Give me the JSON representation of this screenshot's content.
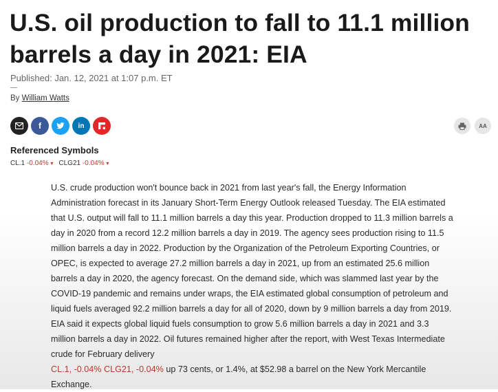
{
  "headline": "U.S. oil production to fall to 11.1 million barrels a day in 2021: EIA",
  "published": "Published: Jan. 12, 2021 at 1:07 p.m. ET",
  "byline": {
    "prefix": "By",
    "author": "William Watts"
  },
  "share_buttons": [
    {
      "icon": "email-icon",
      "color": "#222222",
      "glyph": "✉"
    },
    {
      "icon": "facebook-icon",
      "color": "#3b5998",
      "glyph": "f"
    },
    {
      "icon": "twitter-icon",
      "color": "#1da1f2",
      "glyph": "t"
    },
    {
      "icon": "linkedin-icon",
      "color": "#0077b5",
      "glyph": "in"
    },
    {
      "icon": "flipboard-icon",
      "color": "#e12828",
      "glyph": "f"
    }
  ],
  "tools": {
    "print_icon": "print-icon",
    "text_size_label": "AA"
  },
  "referenced_symbols": {
    "title": "Referenced Symbols",
    "items": [
      {
        "symbol": "CL.1",
        "change": "-0.04%",
        "indicator": "▾"
      },
      {
        "symbol": "CLG21",
        "change": "-0.04%",
        "indicator": "▾"
      }
    ]
  },
  "article": {
    "text_before": "U.S. crude production won't bounce back in 2021 from last year's fall, the Energy Information Administration forecast in its January Short-Term Energy Outlook released Tuesday. The EIA estimated that U.S. output will fall to 11.1 million barrels a day this year. Production dropped to 11.3 million barrels a day in 2020 from a record 12.2 million barrels a day in 2019. The agency sees production rising to 11.5 million barrels a day in 2022. Production by the Organization of the Petroleum Exporting Countries, or OPEC, is expected to average 27.2 million barrels a day in 2021, up from an estimated 25.6 million barrels a day in 2020, the agency forecast. On the demand side, which was slammed last year by the COVID-19 pandemic and remains under wraps, the EIA estimated global consumption of petroleum and liquid fuels averaged 92.2 million barrels a day for all of 2020, down by 9 million barrels a day from 2019. EIA said it expects global liquid fuels consumption to grow 5.6 million barrels a day in 2021 and 3.3 million barrels a day in 2022. Oil futures remained higher after the report, with West Texas Intermediate crude for February delivery",
    "quote": "CL.1, -0.04% CLG21, -0.04%",
    "text_after": "up 73 cents, or 1.4%, at $52.98 a barrel on the New York Mercantile Exchange."
  }
}
